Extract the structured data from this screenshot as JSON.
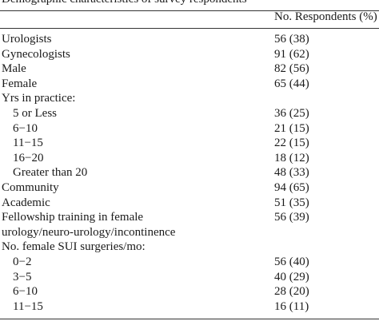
{
  "table": {
    "title": "Demographic characteristics of survey respondents",
    "header": "No. Respondents (%)",
    "rows": [
      {
        "label": "Urologists",
        "value": "56 (38)"
      },
      {
        "label": "Gynecologists",
        "value": "91 (62)"
      },
      {
        "label": "Male",
        "value": "82 (56)"
      },
      {
        "label": "Female",
        "value": "65 (44)"
      },
      {
        "label": "Yrs in practice:",
        "subrows": [
          {
            "label": "5 or Less",
            "value": "36 (25)"
          },
          {
            "label": "6−10",
            "value": "21 (15)"
          },
          {
            "label": "11−15",
            "value": "22 (15)"
          },
          {
            "label": "16−20",
            "value": "18 (12)"
          },
          {
            "label": "Greater than 20",
            "value": "48 (33)"
          }
        ]
      },
      {
        "label": "Community",
        "value": "94 (65)"
      },
      {
        "label": "Academic",
        "value": "51 (35)"
      },
      {
        "label": "Fellowship training in female urology/neuro-urology/incontinence",
        "value": "56 (39)"
      },
      {
        "label": "No. female SUI surgeries/mo:",
        "subrows": [
          {
            "label": "0−2",
            "value": "56 (40)"
          },
          {
            "label": "3−5",
            "value": "40 (29)"
          },
          {
            "label": "6−10",
            "value": "28 (20)"
          },
          {
            "label": "11−15",
            "value": "16 (11)"
          }
        ]
      }
    ]
  }
}
